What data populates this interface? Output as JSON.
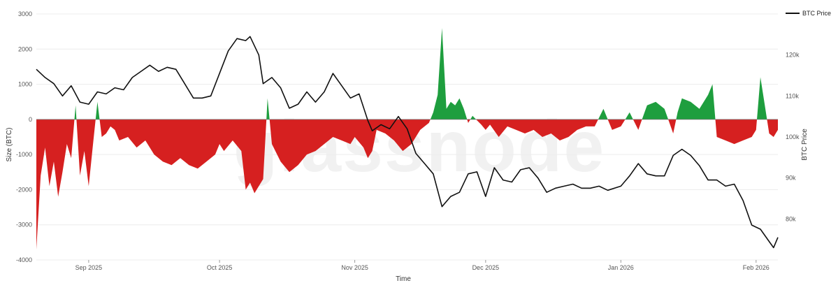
{
  "watermark": "glassnode",
  "chart_data": {
    "type": "area",
    "xlabel": "Time",
    "ylabel": "Size (BTC)",
    "y2label": "BTC Price",
    "ylim": [
      -4000,
      3000
    ],
    "y_ticks": [
      3000,
      2000,
      1000,
      0,
      -1000,
      -2000,
      -3000,
      -4000
    ],
    "y2lim": [
      70000,
      130000
    ],
    "y2_ticks": [
      80000,
      90000,
      100000,
      110000,
      120000
    ],
    "y2_tick_labels": [
      "80k",
      "90k",
      "100k",
      "110k",
      "120k"
    ],
    "x_range": [
      "2025-08-20",
      "2026-02-06"
    ],
    "x_ticks": [
      {
        "date": "2025-09-01",
        "label": "Sep 2025"
      },
      {
        "date": "2025-10-01",
        "label": "Oct 2025"
      },
      {
        "date": "2025-11-01",
        "label": "Nov 2025"
      },
      {
        "date": "2025-12-01",
        "label": "Dec 2025"
      },
      {
        "date": "2026-01-01",
        "label": "Jan 2026"
      },
      {
        "date": "2026-02-01",
        "label": "Feb 2026"
      }
    ],
    "grid": true,
    "legend_position": "top-right",
    "colors": {
      "positive": "#1e9e3e",
      "negative": "#d62020",
      "price": "#111111"
    },
    "series": [
      {
        "name": "BTC Price",
        "axis": "right",
        "type": "line",
        "points": [
          [
            "2025-08-20",
            116500
          ],
          [
            "2025-08-22",
            114500
          ],
          [
            "2025-08-24",
            113000
          ],
          [
            "2025-08-26",
            110000
          ],
          [
            "2025-08-28",
            112500
          ],
          [
            "2025-08-30",
            108500
          ],
          [
            "2025-09-01",
            108000
          ],
          [
            "2025-09-03",
            111000
          ],
          [
            "2025-09-05",
            110500
          ],
          [
            "2025-09-07",
            112000
          ],
          [
            "2025-09-09",
            111500
          ],
          [
            "2025-09-11",
            114500
          ],
          [
            "2025-09-13",
            116000
          ],
          [
            "2025-09-15",
            117500
          ],
          [
            "2025-09-17",
            116000
          ],
          [
            "2025-09-19",
            117000
          ],
          [
            "2025-09-21",
            116500
          ],
          [
            "2025-09-23",
            113000
          ],
          [
            "2025-09-25",
            109500
          ],
          [
            "2025-09-27",
            109500
          ],
          [
            "2025-09-29",
            110000
          ],
          [
            "2025-10-01",
            115500
          ],
          [
            "2025-10-03",
            121000
          ],
          [
            "2025-10-05",
            124000
          ],
          [
            "2025-10-07",
            123500
          ],
          [
            "2025-10-08",
            124500
          ],
          [
            "2025-10-10",
            120000
          ],
          [
            "2025-10-11",
            113000
          ],
          [
            "2025-10-13",
            114500
          ],
          [
            "2025-10-15",
            112000
          ],
          [
            "2025-10-17",
            107000
          ],
          [
            "2025-10-19",
            108000
          ],
          [
            "2025-10-21",
            111000
          ],
          [
            "2025-10-23",
            108500
          ],
          [
            "2025-10-25",
            111000
          ],
          [
            "2025-10-27",
            115500
          ],
          [
            "2025-10-29",
            112500
          ],
          [
            "2025-10-31",
            109500
          ],
          [
            "2025-11-02",
            110500
          ],
          [
            "2025-11-04",
            104000
          ],
          [
            "2025-11-05",
            101500
          ],
          [
            "2025-11-07",
            103000
          ],
          [
            "2025-11-09",
            102000
          ],
          [
            "2025-11-11",
            105000
          ],
          [
            "2025-11-13",
            102000
          ],
          [
            "2025-11-15",
            96000
          ],
          [
            "2025-11-17",
            93500
          ],
          [
            "2025-11-19",
            91000
          ],
          [
            "2025-11-21",
            83000
          ],
          [
            "2025-11-23",
            85500
          ],
          [
            "2025-11-25",
            86500
          ],
          [
            "2025-11-27",
            91000
          ],
          [
            "2025-11-29",
            91500
          ],
          [
            "2025-12-01",
            85500
          ],
          [
            "2025-12-03",
            92500
          ],
          [
            "2025-12-05",
            89500
          ],
          [
            "2025-12-07",
            89000
          ],
          [
            "2025-12-09",
            92000
          ],
          [
            "2025-12-11",
            92500
          ],
          [
            "2025-12-13",
            90000
          ],
          [
            "2025-12-15",
            86500
          ],
          [
            "2025-12-17",
            87500
          ],
          [
            "2025-12-19",
            88000
          ],
          [
            "2025-12-21",
            88500
          ],
          [
            "2025-12-23",
            87500
          ],
          [
            "2025-12-25",
            87500
          ],
          [
            "2025-12-27",
            88000
          ],
          [
            "2025-12-29",
            87000
          ],
          [
            "2026-01-01",
            88000
          ],
          [
            "2026-01-03",
            90500
          ],
          [
            "2026-01-05",
            93500
          ],
          [
            "2026-01-07",
            91000
          ],
          [
            "2026-01-09",
            90500
          ],
          [
            "2026-01-11",
            90500
          ],
          [
            "2026-01-13",
            95500
          ],
          [
            "2026-01-15",
            97000
          ],
          [
            "2026-01-17",
            95500
          ],
          [
            "2026-01-19",
            93000
          ],
          [
            "2026-01-21",
            89500
          ],
          [
            "2026-01-23",
            89500
          ],
          [
            "2026-01-25",
            88000
          ],
          [
            "2026-01-27",
            88500
          ],
          [
            "2026-01-29",
            84500
          ],
          [
            "2026-01-31",
            78500
          ],
          [
            "2026-02-02",
            77500
          ],
          [
            "2026-02-04",
            74500
          ],
          [
            "2026-02-05",
            73000
          ],
          [
            "2026-02-06",
            75500
          ]
        ]
      },
      {
        "name": "Size",
        "axis": "left",
        "type": "area",
        "points": [
          [
            "2025-08-20",
            -3700
          ],
          [
            "2025-08-21",
            -1600
          ],
          [
            "2025-08-22",
            -800
          ],
          [
            "2025-08-23",
            -1900
          ],
          [
            "2025-08-24",
            -1200
          ],
          [
            "2025-08-25",
            -2200
          ],
          [
            "2025-08-26",
            -1500
          ],
          [
            "2025-08-27",
            -700
          ],
          [
            "2025-08-28",
            -1100
          ],
          [
            "2025-08-29",
            400
          ],
          [
            "2025-08-30",
            -1600
          ],
          [
            "2025-08-31",
            -900
          ],
          [
            "2025-09-01",
            -1900
          ],
          [
            "2025-09-02",
            -700
          ],
          [
            "2025-09-03",
            500
          ],
          [
            "2025-09-04",
            -500
          ],
          [
            "2025-09-05",
            -400
          ],
          [
            "2025-09-06",
            -200
          ],
          [
            "2025-09-07",
            -300
          ],
          [
            "2025-09-08",
            -600
          ],
          [
            "2025-09-10",
            -500
          ],
          [
            "2025-09-12",
            -800
          ],
          [
            "2025-09-14",
            -600
          ],
          [
            "2025-09-16",
            -1000
          ],
          [
            "2025-09-18",
            -1200
          ],
          [
            "2025-09-20",
            -1300
          ],
          [
            "2025-09-22",
            -1100
          ],
          [
            "2025-09-24",
            -1300
          ],
          [
            "2025-09-26",
            -1400
          ],
          [
            "2025-09-28",
            -1200
          ],
          [
            "2025-09-30",
            -1000
          ],
          [
            "2025-10-01",
            -700
          ],
          [
            "2025-10-02",
            -900
          ],
          [
            "2025-10-04",
            -600
          ],
          [
            "2025-10-06",
            -900
          ],
          [
            "2025-10-07",
            -2000
          ],
          [
            "2025-10-08",
            -1800
          ],
          [
            "2025-10-09",
            -2100
          ],
          [
            "2025-10-10",
            -1900
          ],
          [
            "2025-10-11",
            -1700
          ],
          [
            "2025-10-12",
            600
          ],
          [
            "2025-10-13",
            -700
          ],
          [
            "2025-10-15",
            -1200
          ],
          [
            "2025-10-17",
            -1500
          ],
          [
            "2025-10-19",
            -1300
          ],
          [
            "2025-10-21",
            -1000
          ],
          [
            "2025-10-23",
            -900
          ],
          [
            "2025-10-25",
            -700
          ],
          [
            "2025-10-27",
            -500
          ],
          [
            "2025-10-29",
            -600
          ],
          [
            "2025-10-31",
            -700
          ],
          [
            "2025-11-01",
            -500
          ],
          [
            "2025-11-03",
            -800
          ],
          [
            "2025-11-04",
            -1100
          ],
          [
            "2025-11-05",
            -900
          ],
          [
            "2025-11-06",
            -300
          ],
          [
            "2025-11-08",
            -400
          ],
          [
            "2025-11-10",
            -600
          ],
          [
            "2025-11-12",
            -900
          ],
          [
            "2025-11-14",
            -700
          ],
          [
            "2025-11-16",
            -300
          ],
          [
            "2025-11-18",
            -100
          ],
          [
            "2025-11-19",
            200
          ],
          [
            "2025-11-20",
            700
          ],
          [
            "2025-11-21",
            2600
          ],
          [
            "2025-11-22",
            300
          ],
          [
            "2025-11-23",
            500
          ],
          [
            "2025-11-24",
            400
          ],
          [
            "2025-11-25",
            600
          ],
          [
            "2025-11-26",
            300
          ],
          [
            "2025-11-27",
            -100
          ],
          [
            "2025-11-28",
            100
          ],
          [
            "2025-11-30",
            -150
          ],
          [
            "2025-12-01",
            -300
          ],
          [
            "2025-12-02",
            -150
          ],
          [
            "2025-12-04",
            -500
          ],
          [
            "2025-12-06",
            -200
          ],
          [
            "2025-12-08",
            -300
          ],
          [
            "2025-12-10",
            -400
          ],
          [
            "2025-12-12",
            -300
          ],
          [
            "2025-12-14",
            -500
          ],
          [
            "2025-12-16",
            -400
          ],
          [
            "2025-12-18",
            -600
          ],
          [
            "2025-12-20",
            -500
          ],
          [
            "2025-12-22",
            -300
          ],
          [
            "2025-12-24",
            -200
          ],
          [
            "2025-12-26",
            -200
          ],
          [
            "2025-12-28",
            300
          ],
          [
            "2025-12-30",
            -300
          ],
          [
            "2026-01-01",
            -200
          ],
          [
            "2026-01-03",
            200
          ],
          [
            "2026-01-05",
            -300
          ],
          [
            "2026-01-07",
            400
          ],
          [
            "2026-01-09",
            500
          ],
          [
            "2026-01-11",
            300
          ],
          [
            "2026-01-13",
            -400
          ],
          [
            "2026-01-14",
            200
          ],
          [
            "2026-01-15",
            600
          ],
          [
            "2026-01-17",
            500
          ],
          [
            "2026-01-19",
            300
          ],
          [
            "2026-01-21",
            700
          ],
          [
            "2026-01-22",
            1000
          ],
          [
            "2026-01-23",
            -500
          ],
          [
            "2026-01-25",
            -600
          ],
          [
            "2026-01-27",
            -700
          ],
          [
            "2026-01-29",
            -600
          ],
          [
            "2026-01-31",
            -500
          ],
          [
            "2026-02-01",
            -300
          ],
          [
            "2026-02-02",
            1200
          ],
          [
            "2026-02-03",
            400
          ],
          [
            "2026-02-04",
            -400
          ],
          [
            "2026-02-05",
            -500
          ],
          [
            "2026-02-06",
            -300
          ]
        ]
      }
    ]
  }
}
